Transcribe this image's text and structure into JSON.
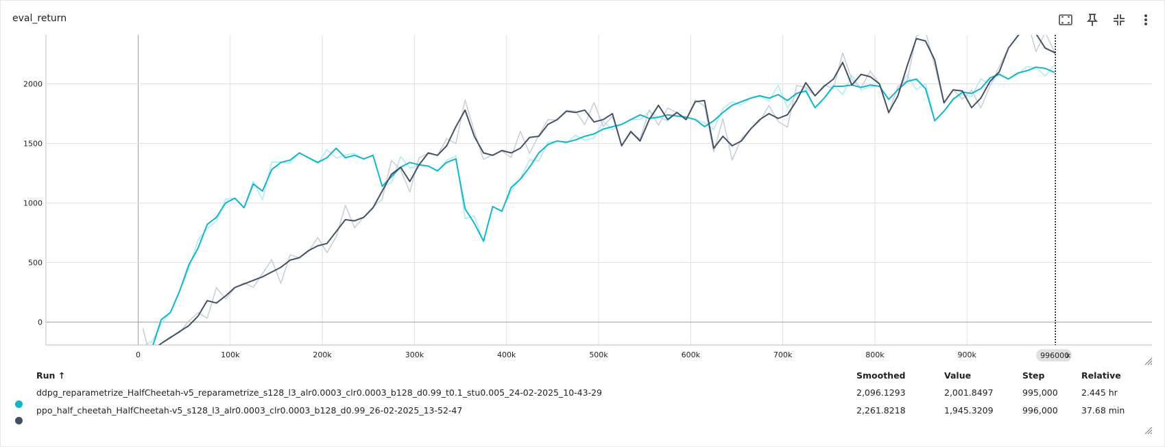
{
  "card": {
    "title": "eval_return"
  },
  "toolbar": {
    "fit_icon": "fit-to-domain-icon",
    "pin_icon": "pin-icon",
    "collapse_icon": "collapse-icon",
    "more_icon": "more-vert-icon"
  },
  "colors": {
    "ddpg": "#12b5cb",
    "ddpg_raw": "#a8ecf5",
    "ppo": "#425066",
    "ppo_raw": "#c7ccd6"
  },
  "chart_data": {
    "type": "line",
    "title": "eval_return",
    "xlabel": "",
    "ylabel": "",
    "xlim": [
      -100000,
      1100000
    ],
    "ylim": [
      -200,
      2400
    ],
    "x_ticks": [
      "0",
      "100k",
      "200k",
      "300k",
      "400k",
      "500k",
      "600k",
      "700k",
      "800k",
      "900k"
    ],
    "y_ticks": [
      "0",
      "500",
      "1000",
      "1500",
      "2000"
    ],
    "grid": true,
    "hover_step": "996000",
    "series": [
      {
        "name": "ddpg_reparametrize_HalfCheetah-v5_reparametrize_s128_l3_alr0.0003_clr0.0003_b128_d0.99_t0.1_stu0.005_24-02-2025_10-43-29",
        "color": "#12b5cb",
        "x": [
          5000,
          15000,
          25000,
          35000,
          45000,
          55000,
          65000,
          75000,
          85000,
          95000,
          105000,
          115000,
          125000,
          135000,
          145000,
          155000,
          165000,
          175000,
          185000,
          195000,
          205000,
          215000,
          225000,
          235000,
          245000,
          255000,
          265000,
          275000,
          285000,
          295000,
          305000,
          315000,
          325000,
          335000,
          345000,
          355000,
          365000,
          375000,
          385000,
          395000,
          405000,
          415000,
          425000,
          435000,
          445000,
          455000,
          465000,
          475000,
          485000,
          495000,
          505000,
          515000,
          525000,
          535000,
          545000,
          555000,
          565000,
          575000,
          585000,
          595000,
          605000,
          615000,
          625000,
          635000,
          645000,
          655000,
          665000,
          675000,
          685000,
          695000,
          705000,
          715000,
          725000,
          735000,
          745000,
          755000,
          765000,
          775000,
          785000,
          795000,
          805000,
          815000,
          825000,
          835000,
          845000,
          855000,
          865000,
          875000,
          885000,
          895000,
          905000,
          915000,
          925000,
          935000,
          945000,
          955000,
          965000,
          975000,
          985000,
          995000
        ],
        "values": [
          -200,
          -220,
          20,
          80,
          260,
          480,
          620,
          820,
          880,
          1000,
          1040,
          960,
          1160,
          1100,
          1280,
          1340,
          1360,
          1420,
          1380,
          1340,
          1380,
          1460,
          1380,
          1400,
          1370,
          1400,
          1140,
          1220,
          1300,
          1340,
          1320,
          1310,
          1270,
          1340,
          1370,
          950,
          830,
          680,
          970,
          930,
          1130,
          1200,
          1300,
          1420,
          1490,
          1520,
          1510,
          1530,
          1560,
          1580,
          1620,
          1640,
          1660,
          1700,
          1740,
          1710,
          1720,
          1740,
          1730,
          1720,
          1700,
          1640,
          1690,
          1760,
          1820,
          1850,
          1880,
          1900,
          1880,
          1910,
          1860,
          1920,
          1940,
          1800,
          1880,
          1980,
          1980,
          1990,
          1970,
          1990,
          1980,
          1870,
          1950,
          2020,
          2040,
          1960,
          1690,
          1770,
          1870,
          1930,
          1920,
          1960,
          2050,
          2080,
          2040,
          2090,
          2110,
          2140,
          2130,
          2096
        ]
      },
      {
        "name": "ppo_half_cheetah_HalfCheetah-v5_s128_l3_alr0.0003_clr0.0003_b128_d0.99_26-02-2025_13-52-47",
        "color": "#425066",
        "x": [
          5000,
          15000,
          25000,
          35000,
          45000,
          55000,
          65000,
          75000,
          85000,
          95000,
          105000,
          115000,
          125000,
          135000,
          145000,
          155000,
          165000,
          175000,
          185000,
          195000,
          205000,
          215000,
          225000,
          235000,
          245000,
          255000,
          265000,
          275000,
          285000,
          295000,
          305000,
          315000,
          325000,
          335000,
          345000,
          355000,
          365000,
          375000,
          385000,
          395000,
          405000,
          415000,
          425000,
          435000,
          445000,
          455000,
          465000,
          475000,
          485000,
          495000,
          505000,
          515000,
          525000,
          535000,
          545000,
          555000,
          565000,
          575000,
          585000,
          595000,
          605000,
          615000,
          625000,
          635000,
          645000,
          655000,
          665000,
          675000,
          685000,
          695000,
          705000,
          715000,
          725000,
          735000,
          745000,
          755000,
          765000,
          775000,
          785000,
          795000,
          805000,
          815000,
          825000,
          835000,
          845000,
          855000,
          865000,
          875000,
          885000,
          895000,
          905000,
          915000,
          925000,
          935000,
          945000,
          955000,
          965000,
          975000,
          985000,
          996000
        ],
        "values": [
          -220,
          -240,
          -180,
          -130,
          -80,
          -30,
          50,
          180,
          160,
          220,
          290,
          320,
          350,
          380,
          420,
          460,
          520,
          540,
          600,
          640,
          660,
          760,
          860,
          850,
          880,
          960,
          1100,
          1240,
          1300,
          1180,
          1320,
          1420,
          1400,
          1480,
          1640,
          1780,
          1560,
          1420,
          1400,
          1440,
          1420,
          1460,
          1550,
          1560,
          1660,
          1700,
          1770,
          1760,
          1780,
          1680,
          1700,
          1750,
          1480,
          1600,
          1520,
          1700,
          1820,
          1700,
          1760,
          1700,
          1850,
          1860,
          1460,
          1560,
          1480,
          1520,
          1620,
          1700,
          1750,
          1710,
          1740,
          1860,
          2010,
          1900,
          1980,
          2040,
          2180,
          1990,
          2080,
          2060,
          2000,
          1760,
          1900,
          2150,
          2380,
          2360,
          2200,
          1840,
          1950,
          1940,
          1800,
          1880,
          2020,
          2100,
          2300,
          2400,
          2500,
          2420,
          2300,
          2260
        ]
      }
    ]
  },
  "table": {
    "headers": {
      "run": "Run ↑",
      "smoothed": "Smoothed",
      "value": "Value",
      "step": "Step",
      "relative": "Relative"
    },
    "rows": [
      {
        "run": "ddpg_reparametrize_HalfCheetah-v5_reparametrize_s128_l3_alr0.0003_clr0.0003_b128_d0.99_t0.1_stu0.005_24-02-2025_10-43-29",
        "smoothed": "2,096.1293",
        "value": "2,001.8497",
        "step": "995,000",
        "relative": "2.445 hr",
        "color": "#12b5cb"
      },
      {
        "run": "ppo_half_cheetah_HalfCheetah-v5_s128_l3_alr0.0003_clr0.0003_b128_d0.99_26-02-2025_13-52-47",
        "smoothed": "2,261.8218",
        "value": "1,945.3209",
        "step": "996,000",
        "relative": "37.68 min",
        "color": "#425066"
      }
    ]
  }
}
